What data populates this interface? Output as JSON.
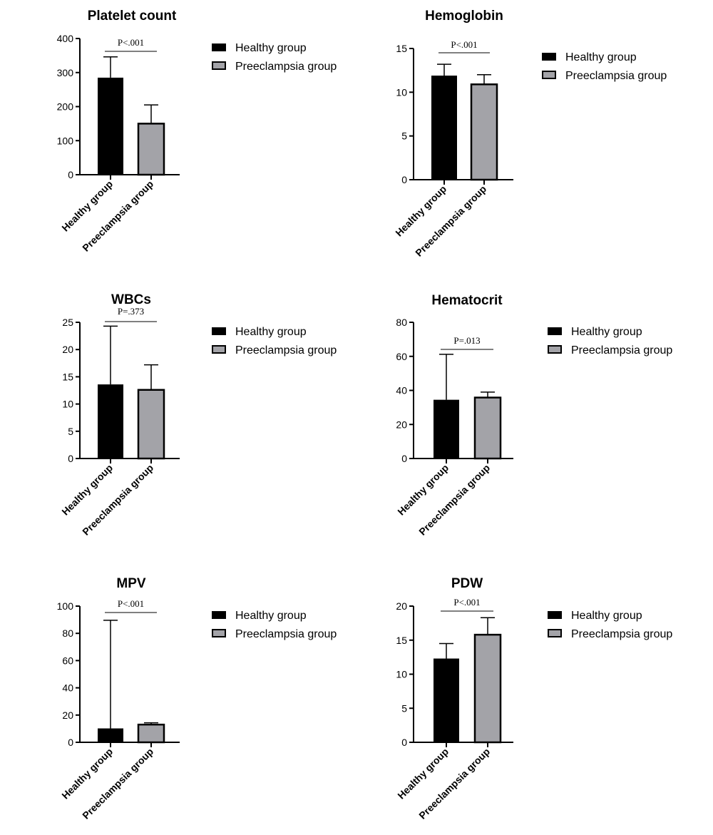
{
  "legend": {
    "healthy": "Healthy group",
    "preeclampsia": "Preeclampsia group"
  },
  "colors": {
    "healthy": "#000000",
    "preeclampsia": "#a3a3a8",
    "axis": "#000000"
  },
  "chart_data": [
    {
      "id": "platelet",
      "type": "bar",
      "title": "Platelet count",
      "categories": [
        "Healthy group",
        "Preeclampsia group"
      ],
      "values": [
        285,
        150
      ],
      "error_upper": [
        346,
        205
      ],
      "ylim": [
        0,
        400
      ],
      "yticks": [
        0,
        100,
        200,
        300,
        400
      ],
      "p_value": "P<.001",
      "legend_placement": "right"
    },
    {
      "id": "hemoglobin",
      "type": "bar",
      "title": "Hemoglobin",
      "categories": [
        "Healthy group",
        "Preeclampsia group"
      ],
      "values": [
        11.9,
        10.9
      ],
      "error_upper": [
        13.2,
        12.0
      ],
      "ylim": [
        0,
        15
      ],
      "yticks": [
        0,
        5,
        10,
        15
      ],
      "p_value": "P<.001",
      "legend_placement": "right"
    },
    {
      "id": "wbcs",
      "type": "bar",
      "title": "WBCs",
      "categories": [
        "Healthy group",
        "Preeclampsia group"
      ],
      "values": [
        13.6,
        12.6
      ],
      "error_upper": [
        24.3,
        17.2
      ],
      "ylim": [
        0,
        25
      ],
      "yticks": [
        0,
        5,
        10,
        15,
        20,
        25
      ],
      "p_value": "P=.373",
      "legend_placement": "right"
    },
    {
      "id": "hematocrit",
      "type": "bar",
      "title": "Hematocrit",
      "categories": [
        "Healthy group",
        "Preeclampsia group"
      ],
      "values": [
        34.5,
        35.8
      ],
      "error_upper": [
        61.2,
        39.0
      ],
      "ylim": [
        0,
        80
      ],
      "yticks": [
        0,
        20,
        40,
        60,
        80
      ],
      "p_value": "P=.013",
      "legend_placement": "right"
    },
    {
      "id": "mpv",
      "type": "bar",
      "title": "MPV",
      "categories": [
        "Healthy group",
        "Preeclampsia group"
      ],
      "values": [
        10.2,
        13.0
      ],
      "error_upper": [
        89.6,
        14.3
      ],
      "ylim": [
        0,
        100
      ],
      "yticks": [
        0,
        20,
        40,
        60,
        80,
        100
      ],
      "p_value": "P<.001",
      "legend_placement": "right"
    },
    {
      "id": "pdw",
      "type": "bar",
      "title": "PDW",
      "categories": [
        "Healthy group",
        "Preeclampsia group"
      ],
      "values": [
        12.3,
        15.8
      ],
      "error_upper": [
        14.5,
        18.3
      ],
      "ylim": [
        0,
        20
      ],
      "yticks": [
        0,
        5,
        10,
        15,
        20
      ],
      "p_value": "P<.001",
      "legend_placement": "right"
    }
  ]
}
